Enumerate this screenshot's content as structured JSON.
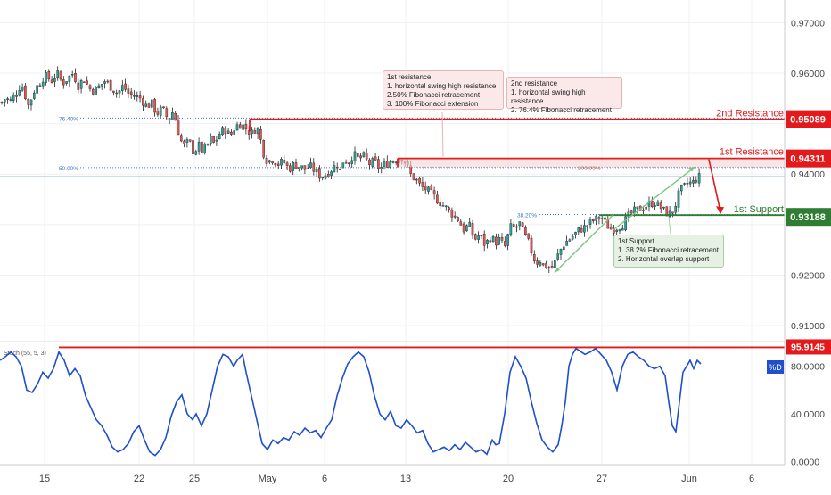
{
  "colors": {
    "bull": "#26a69a",
    "bear": "#ef5350",
    "wick": "#222222",
    "resistance": "#e31a1c",
    "support": "#2e7d32",
    "stoch": "#1f4fcc",
    "fib": "#3b78c9",
    "grid": "#eef0f3",
    "axis_text": "#444444"
  },
  "price_axis": {
    "ticks": [
      "0.97000",
      "0.96000",
      "0.95000",
      "0.94000",
      "0.93000",
      "0.92000",
      "0.91000"
    ]
  },
  "osc_axis": {
    "ticks": [
      "80.0000",
      "40.0000",
      "0.0000"
    ],
    "tag": "%D"
  },
  "time_axis": {
    "ticks": [
      "15",
      "22",
      "25",
      "May",
      "6",
      "13",
      "20",
      "27",
      "Jun",
      "6"
    ]
  },
  "levels": {
    "second_resistance": {
      "label": "2nd Resistance",
      "value": "0.95089"
    },
    "first_resistance": {
      "label": "1st Resistance",
      "value": "0.94311"
    },
    "first_support": {
      "label": "1st Support",
      "value": "0.93188"
    },
    "stoch_level": {
      "value": "95.9145"
    }
  },
  "fib_labels": {
    "f764": "76.40%",
    "f50": "50.00%",
    "f382": "38.20%",
    "f100": "100.00%"
  },
  "indicator_label": "Stoch (55, 5, 3)",
  "notes": {
    "res1": {
      "title": "1st resistance",
      "lines": [
        "1. horizontal swing high resistance",
        "2.50% Fibonacci retracement",
        "3. 100% Fibonacci extension"
      ]
    },
    "res2": {
      "title": "2nd resistance",
      "lines": [
        "1. horizontal swing high resistance",
        "2. 76.4% Fibonacci retracement"
      ]
    },
    "sup1": {
      "title": "1st Support",
      "lines": [
        "1.  38.2% Fibonacci retracement",
        "2. Horizontal overlap support"
      ]
    }
  },
  "chart_data": [
    {
      "type": "candlestick",
      "title": "",
      "x_ticks": [
        "15",
        "22",
        "25",
        "May",
        "6",
        "13",
        "20",
        "27",
        "Jun",
        "6"
      ],
      "ylim": [
        0.907,
        0.9745
      ],
      "y_ticks": [
        0.97,
        0.96,
        0.95,
        0.94,
        0.93,
        0.92,
        0.91
      ],
      "close_path": [
        [
          0,
          0.954
        ],
        [
          6,
          0.955
        ],
        [
          12,
          0.9545
        ],
        [
          18,
          0.956
        ],
        [
          24,
          0.958
        ],
        [
          32,
          0.9535
        ],
        [
          38,
          0.9565
        ],
        [
          44,
          0.958
        ],
        [
          50,
          0.9595
        ],
        [
          58,
          0.9585
        ],
        [
          64,
          0.96
        ],
        [
          70,
          0.958
        ],
        [
          76,
          0.959
        ],
        [
          82,
          0.96
        ],
        [
          88,
          0.9575
        ],
        [
          94,
          0.959
        ],
        [
          100,
          0.957
        ],
        [
          106,
          0.9565
        ],
        [
          112,
          0.9575
        ],
        [
          118,
          0.9585
        ],
        [
          126,
          0.957
        ],
        [
          132,
          0.956
        ],
        [
          138,
          0.9575
        ],
        [
          144,
          0.956
        ],
        [
          150,
          0.9555
        ],
        [
          158,
          0.955
        ],
        [
          164,
          0.9535
        ],
        [
          170,
          0.954
        ],
        [
          176,
          0.952
        ],
        [
          182,
          0.953
        ],
        [
          186,
          0.9515
        ],
        [
          190,
          0.951
        ],
        [
          194,
          0.9525
        ],
        [
          198,
          0.95
        ],
        [
          202,
          0.947
        ],
        [
          206,
          0.9455
        ],
        [
          212,
          0.9465
        ],
        [
          218,
          0.944
        ],
        [
          222,
          0.946
        ],
        [
          226,
          0.9445
        ],
        [
          232,
          0.9455
        ],
        [
          236,
          0.947
        ],
        [
          240,
          0.946
        ],
        [
          246,
          0.948
        ],
        [
          252,
          0.949
        ],
        [
          258,
          0.9475
        ],
        [
          264,
          0.9495
        ],
        [
          270,
          0.95
        ],
        [
          276,
          0.949
        ],
        [
          282,
          0.948
        ],
        [
          288,
          0.9495
        ],
        [
          292,
          0.947
        ],
        [
          296,
          0.944
        ],
        [
          300,
          0.9425
        ],
        [
          306,
          0.943
        ],
        [
          312,
          0.942
        ],
        [
          318,
          0.9425
        ],
        [
          324,
          0.941
        ],
        [
          330,
          0.942
        ],
        [
          336,
          0.9415
        ],
        [
          342,
          0.941
        ],
        [
          348,
          0.9415
        ],
        [
          354,
          0.9405
        ],
        [
          360,
          0.9395
        ],
        [
          366,
          0.94
        ],
        [
          372,
          0.941
        ],
        [
          378,
          0.942
        ],
        [
          382,
          0.9405
        ],
        [
          386,
          0.9435
        ],
        [
          390,
          0.942
        ],
        [
          396,
          0.944
        ],
        [
          402,
          0.943
        ],
        [
          408,
          0.9435
        ],
        [
          414,
          0.942
        ],
        [
          420,
          0.9425
        ],
        [
          426,
          0.941
        ],
        [
          432,
          0.942
        ],
        [
          438,
          0.9425
        ],
        [
          444,
          0.943
        ],
        [
          450,
          0.9435
        ],
        [
          456,
          0.942
        ],
        [
          460,
          0.94
        ],
        [
          466,
          0.939
        ],
        [
          472,
          0.9375
        ],
        [
          478,
          0.937
        ],
        [
          484,
          0.936
        ],
        [
          490,
          0.935
        ],
        [
          496,
          0.934
        ],
        [
          502,
          0.933
        ],
        [
          508,
          0.932
        ],
        [
          514,
          0.931
        ],
        [
          520,
          0.929
        ],
        [
          526,
          0.93
        ],
        [
          532,
          0.927
        ],
        [
          538,
          0.928
        ],
        [
          544,
          0.926
        ],
        [
          550,
          0.9275
        ],
        [
          556,
          0.9265
        ],
        [
          560,
          0.927
        ],
        [
          566,
          0.9255
        ],
        [
          570,
          0.928
        ],
        [
          574,
          0.93
        ],
        [
          578,
          0.929
        ],
        [
          582,
          0.9305
        ],
        [
          588,
          0.928
        ],
        [
          594,
          0.926
        ],
        [
          598,
          0.9235
        ],
        [
          602,
          0.9225
        ],
        [
          606,
          0.923
        ],
        [
          610,
          0.9215
        ],
        [
          614,
          0.922
        ],
        [
          618,
          0.921
        ],
        [
          622,
          0.9225
        ],
        [
          626,
          0.924
        ],
        [
          630,
          0.9255
        ],
        [
          634,
          0.9265
        ],
        [
          638,
          0.927
        ],
        [
          644,
          0.928
        ],
        [
          650,
          0.929
        ],
        [
          656,
          0.9295
        ],
        [
          662,
          0.9305
        ],
        [
          668,
          0.931
        ],
        [
          674,
          0.9315
        ],
        [
          680,
          0.93
        ],
        [
          686,
          0.929
        ],
        [
          692,
          0.9295
        ],
        [
          698,
          0.93
        ],
        [
          704,
          0.9315
        ],
        [
          710,
          0.9325
        ],
        [
          716,
          0.933
        ],
        [
          722,
          0.9335
        ],
        [
          728,
          0.934
        ],
        [
          734,
          0.9345
        ],
        [
          740,
          0.9335
        ],
        [
          746,
          0.9325
        ],
        [
          752,
          0.932
        ],
        [
          756,
          0.933
        ],
        [
          760,
          0.9355
        ],
        [
          764,
          0.937
        ],
        [
          768,
          0.9375
        ],
        [
          772,
          0.9385
        ],
        [
          776,
          0.938
        ],
        [
          780,
          0.939
        ],
        [
          785,
          0.9395
        ]
      ],
      "levels": [
        0.95089,
        0.94311,
        0.93188
      ],
      "fib_levels": [
        {
          "label": "76.40%",
          "value": 0.9511
        },
        {
          "label": "50.00%",
          "value": 0.9413
        },
        {
          "label": "38.20%",
          "value": 0.932
        },
        {
          "label": "100.00%",
          "value": 0.9414
        }
      ]
    },
    {
      "type": "line",
      "name": "Stoch (55, 5, 3)",
      "ylim": [
        -2,
        100
      ],
      "y_ticks": [
        80,
        40,
        0
      ],
      "level": 95.9145,
      "points": [
        [
          0,
          85
        ],
        [
          6,
          88
        ],
        [
          12,
          92
        ],
        [
          18,
          88
        ],
        [
          24,
          80
        ],
        [
          30,
          60
        ],
        [
          36,
          58
        ],
        [
          42,
          65
        ],
        [
          48,
          75
        ],
        [
          54,
          70
        ],
        [
          60,
          78
        ],
        [
          66,
          92
        ],
        [
          72,
          85
        ],
        [
          78,
          72
        ],
        [
          84,
          78
        ],
        [
          90,
          72
        ],
        [
          96,
          55
        ],
        [
          102,
          45
        ],
        [
          108,
          35
        ],
        [
          114,
          30
        ],
        [
          120,
          22
        ],
        [
          126,
          12
        ],
        [
          132,
          8
        ],
        [
          138,
          10
        ],
        [
          144,
          15
        ],
        [
          150,
          25
        ],
        [
          156,
          30
        ],
        [
          162,
          18
        ],
        [
          168,
          8
        ],
        [
          174,
          5
        ],
        [
          180,
          10
        ],
        [
          186,
          20
        ],
        [
          192,
          38
        ],
        [
          198,
          50
        ],
        [
          204,
          56
        ],
        [
          210,
          40
        ],
        [
          216,
          35
        ],
        [
          220,
          40
        ],
        [
          226,
          30
        ],
        [
          232,
          40
        ],
        [
          238,
          60
        ],
        [
          244,
          80
        ],
        [
          250,
          90
        ],
        [
          256,
          88
        ],
        [
          262,
          80
        ],
        [
          266,
          85
        ],
        [
          272,
          90
        ],
        [
          276,
          75
        ],
        [
          282,
          55
        ],
        [
          288,
          35
        ],
        [
          294,
          15
        ],
        [
          300,
          10
        ],
        [
          306,
          18
        ],
        [
          312,
          15
        ],
        [
          318,
          20
        ],
        [
          324,
          18
        ],
        [
          330,
          25
        ],
        [
          336,
          22
        ],
        [
          342,
          28
        ],
        [
          348,
          24
        ],
        [
          354,
          26
        ],
        [
          360,
          20
        ],
        [
          366,
          28
        ],
        [
          372,
          35
        ],
        [
          378,
          55
        ],
        [
          384,
          70
        ],
        [
          390,
          82
        ],
        [
          396,
          88
        ],
        [
          402,
          92
        ],
        [
          408,
          88
        ],
        [
          414,
          75
        ],
        [
          420,
          55
        ],
        [
          426,
          40
        ],
        [
          432,
          35
        ],
        [
          438,
          42
        ],
        [
          444,
          30
        ],
        [
          450,
          28
        ],
        [
          456,
          35
        ],
        [
          462,
          30
        ],
        [
          468,
          24
        ],
        [
          474,
          26
        ],
        [
          480,
          15
        ],
        [
          486,
          8
        ],
        [
          492,
          10
        ],
        [
          498,
          12
        ],
        [
          504,
          9
        ],
        [
          510,
          14
        ],
        [
          516,
          10
        ],
        [
          522,
          16
        ],
        [
          528,
          12
        ],
        [
          534,
          8
        ],
        [
          540,
          10
        ],
        [
          546,
          6
        ],
        [
          552,
          18
        ],
        [
          556,
          14
        ],
        [
          560,
          15
        ],
        [
          566,
          40
        ],
        [
          572,
          75
        ],
        [
          578,
          88
        ],
        [
          584,
          80
        ],
        [
          590,
          70
        ],
        [
          596,
          50
        ],
        [
          602,
          32
        ],
        [
          608,
          18
        ],
        [
          614,
          12
        ],
        [
          620,
          8
        ],
        [
          626,
          14
        ],
        [
          630,
          30
        ],
        [
          634,
          50
        ],
        [
          638,
          80
        ],
        [
          642,
          90
        ],
        [
          646,
          95
        ],
        [
          650,
          93
        ],
        [
          656,
          90
        ],
        [
          662,
          92
        ],
        [
          668,
          95
        ],
        [
          674,
          90
        ],
        [
          680,
          85
        ],
        [
          686,
          75
        ],
        [
          692,
          60
        ],
        [
          698,
          80
        ],
        [
          704,
          90
        ],
        [
          710,
          92
        ],
        [
          716,
          88
        ],
        [
          722,
          85
        ],
        [
          728,
          80
        ],
        [
          734,
          78
        ],
        [
          740,
          80
        ],
        [
          746,
          72
        ],
        [
          750,
          50
        ],
        [
          754,
          30
        ],
        [
          758,
          25
        ],
        [
          762,
          50
        ],
        [
          766,
          75
        ],
        [
          770,
          80
        ],
        [
          774,
          85
        ],
        [
          778,
          78
        ],
        [
          782,
          85
        ],
        [
          786,
          82
        ]
      ]
    }
  ]
}
